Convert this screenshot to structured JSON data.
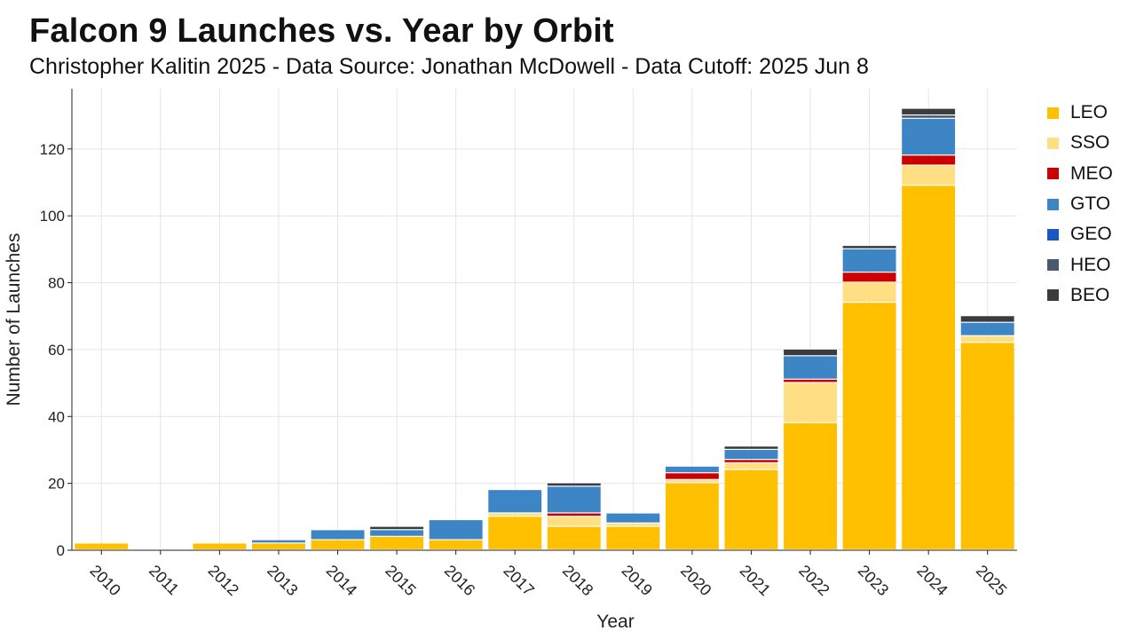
{
  "chart_data": {
    "type": "bar",
    "stacked": true,
    "title": "Falcon 9 Launches vs. Year by Orbit",
    "subtitle": "Christopher Kalitin 2025 - Data Source: Jonathan McDowell - Data Cutoff: 2025 Jun 8",
    "xlabel": "Year",
    "ylabel": "Number of Launches",
    "ylim": [
      0,
      138
    ],
    "yticks": [
      0,
      20,
      40,
      60,
      80,
      100,
      120
    ],
    "grid": true,
    "legend_position": "right",
    "categories": [
      "2010",
      "2011",
      "2012",
      "2013",
      "2014",
      "2015",
      "2016",
      "2017",
      "2018",
      "2019",
      "2020",
      "2021",
      "2022",
      "2023",
      "2024",
      "2025"
    ],
    "series": [
      {
        "name": "LEO",
        "color": "#FFC000",
        "values": [
          2,
          0,
          2,
          2,
          3,
          4,
          3,
          10,
          7,
          7,
          20,
          24,
          38,
          74,
          109,
          62
        ]
      },
      {
        "name": "SSO",
        "color": "#FFDE84",
        "values": [
          0,
          0,
          0,
          0,
          0,
          0,
          0,
          1,
          3,
          1,
          1,
          2,
          12,
          6,
          6,
          2
        ]
      },
      {
        "name": "MEO",
        "color": "#CC0000",
        "values": [
          0,
          0,
          0,
          0,
          0,
          0,
          0,
          0,
          1,
          0,
          2,
          1,
          1,
          3,
          3,
          0
        ]
      },
      {
        "name": "GTO",
        "color": "#3E85C6",
        "values": [
          0,
          0,
          0,
          1,
          3,
          2,
          6,
          7,
          8,
          3,
          2,
          3,
          7,
          7,
          11,
          4
        ]
      },
      {
        "name": "GEO",
        "color": "#1A56C4",
        "values": [
          0,
          0,
          0,
          0,
          0,
          0,
          0,
          0,
          0,
          0,
          0,
          0,
          0,
          0,
          0,
          0
        ]
      },
      {
        "name": "HEO",
        "color": "#4A5A6E",
        "values": [
          0,
          0,
          0,
          0,
          0,
          0,
          0,
          0,
          0,
          0,
          0,
          0,
          0,
          0,
          1,
          0
        ]
      },
      {
        "name": "BEO",
        "color": "#3A3C40",
        "values": [
          0,
          0,
          0,
          0,
          0,
          1,
          0,
          0,
          1,
          0,
          0,
          1,
          2,
          1,
          2,
          2
        ]
      }
    ]
  }
}
